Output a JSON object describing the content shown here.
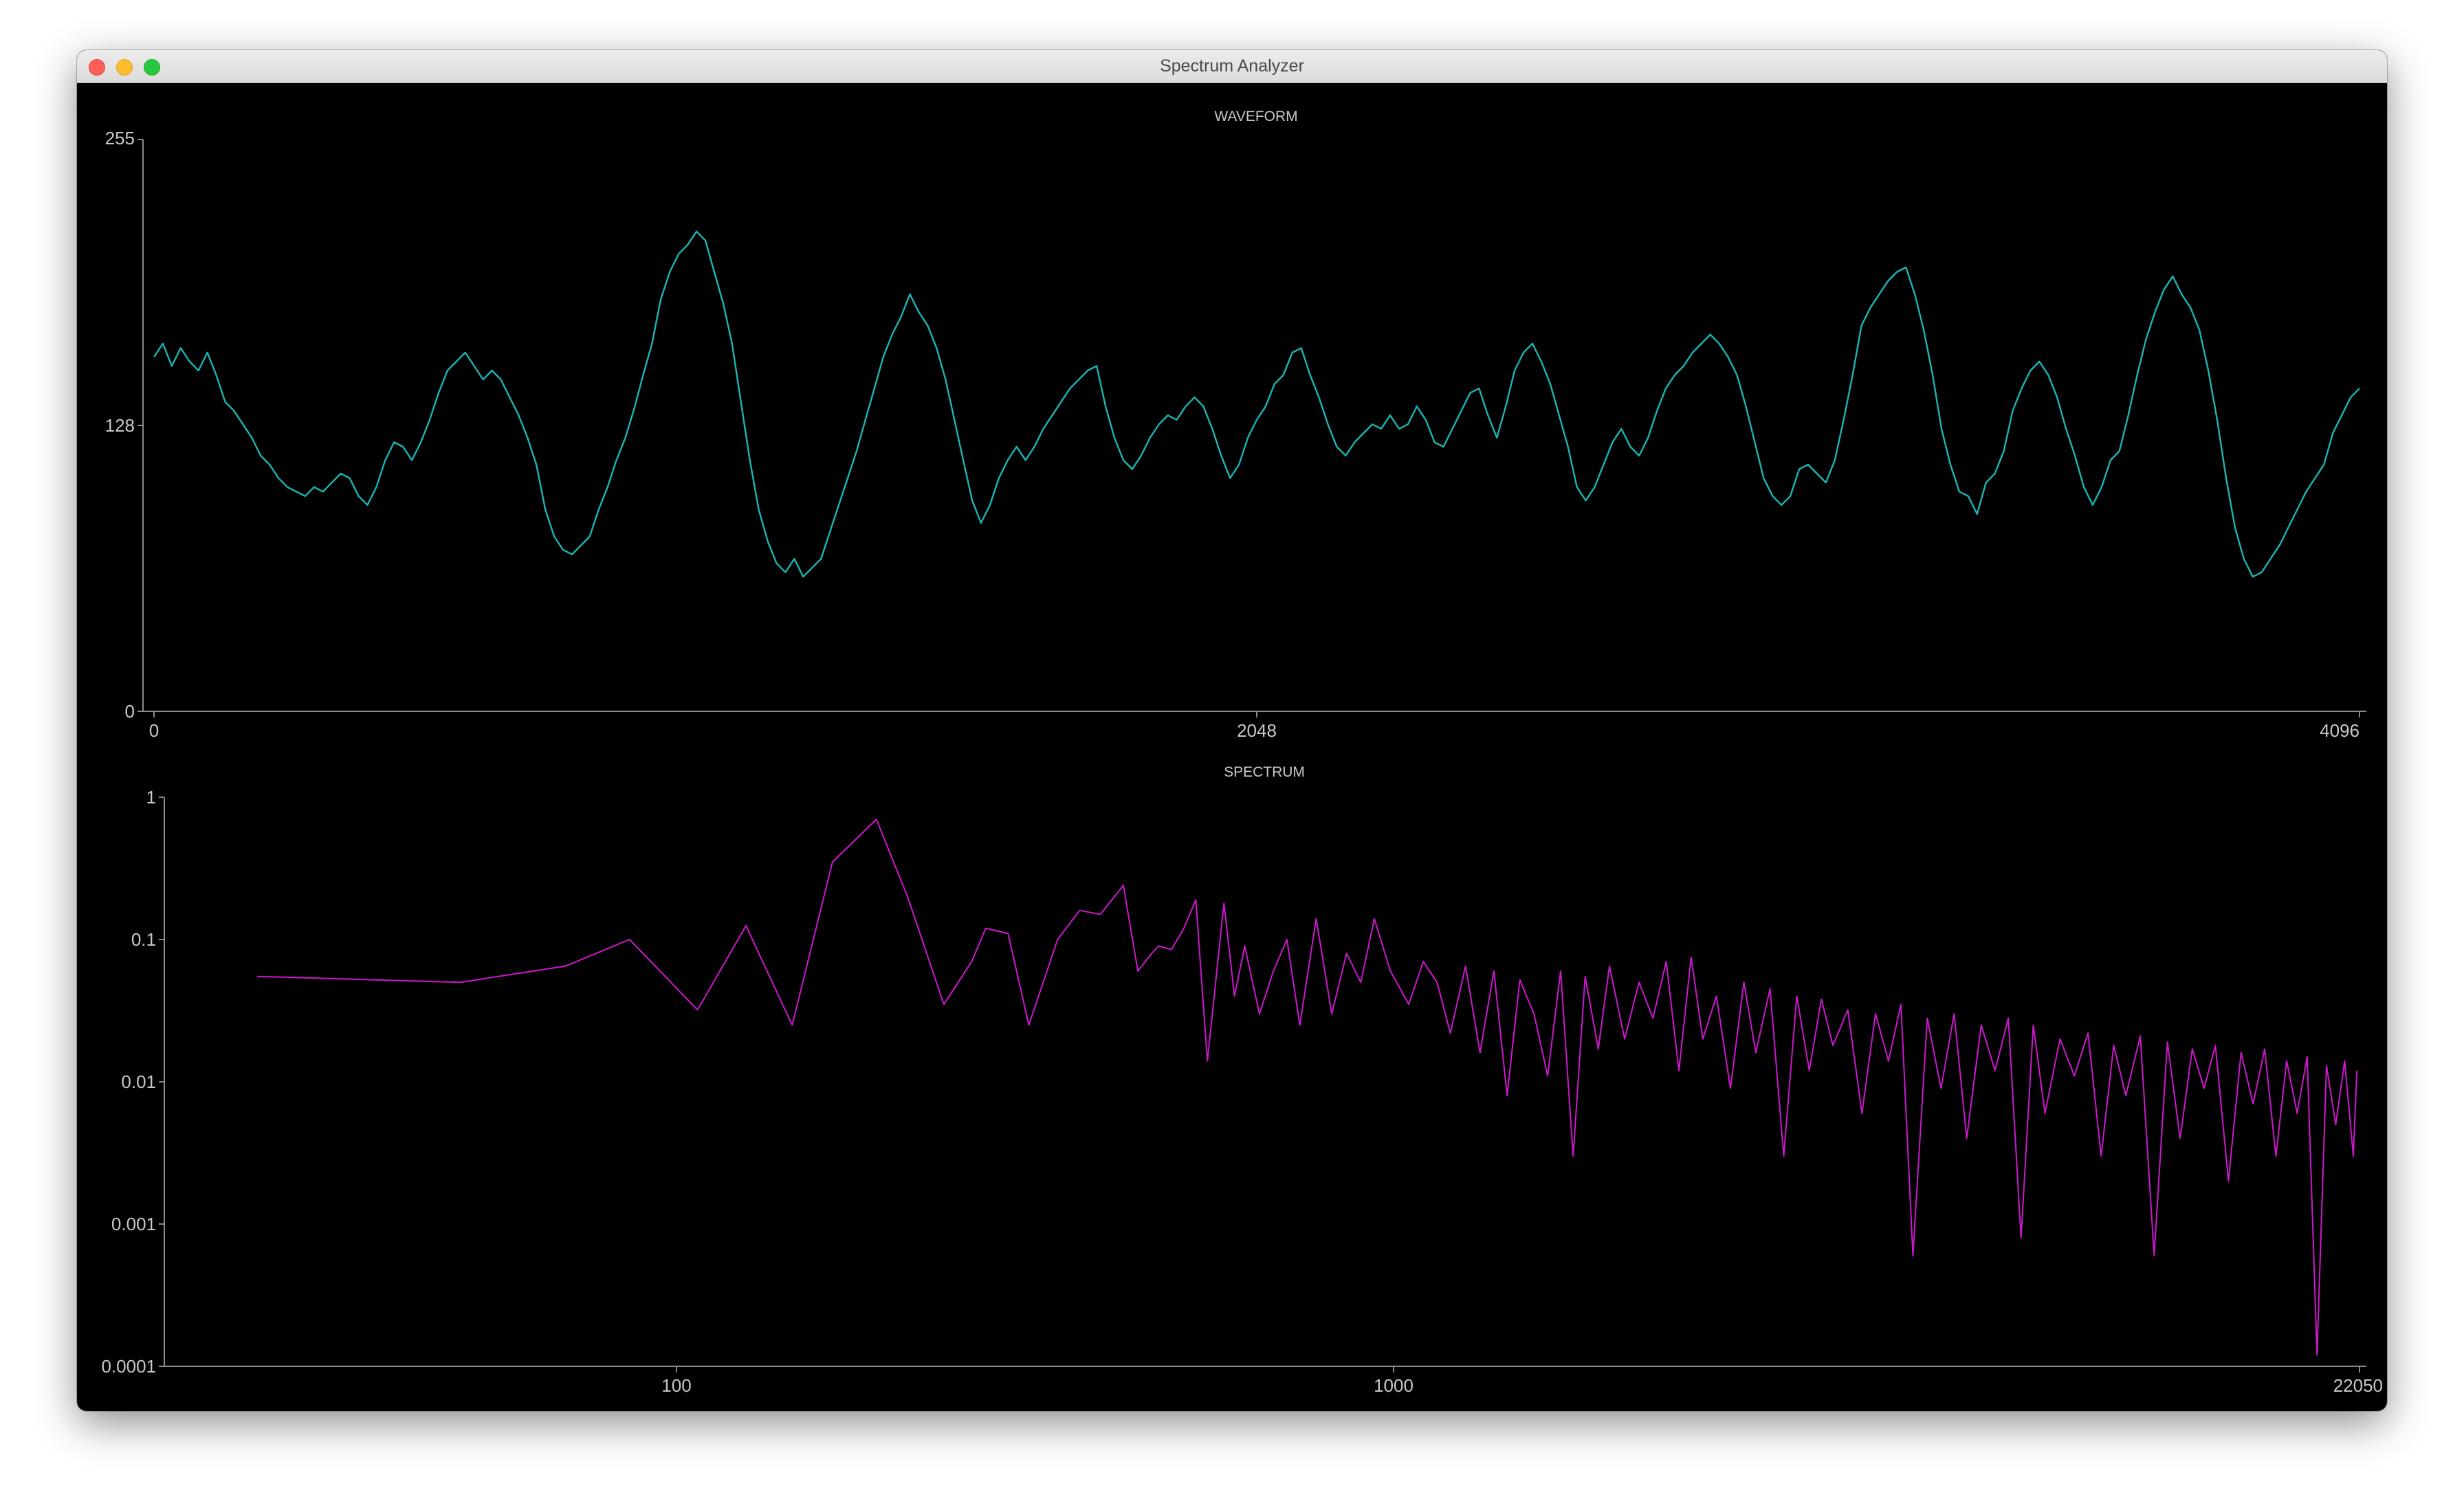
{
  "window": {
    "title": "Spectrum Analyzer"
  },
  "colors": {
    "waveform": "#1ab6b6",
    "spectrum": "#cc18cc",
    "axis": "#8a8a8a",
    "text": "#c8c8c8",
    "background": "#000000"
  },
  "chart_data": [
    {
      "type": "line",
      "title": "WAVEFORM",
      "xlim": [
        0,
        4096
      ],
      "ylim": [
        0,
        255
      ],
      "x_ticks": [
        "0",
        "2048",
        "4096"
      ],
      "y_ticks": [
        "0",
        "128",
        "255"
      ],
      "series": [
        {
          "values": [
            158,
            164,
            154,
            162,
            156,
            152,
            160,
            150,
            138,
            134,
            128,
            122,
            114,
            110,
            104,
            100,
            98,
            96,
            100,
            98,
            102,
            106,
            104,
            96,
            92,
            100,
            112,
            120,
            118,
            112,
            120,
            130,
            142,
            152,
            156,
            160,
            154,
            148,
            152,
            148,
            140,
            132,
            122,
            110,
            90,
            78,
            72,
            70,
            74,
            78,
            90,
            100,
            112,
            122,
            135,
            150,
            164,
            184,
            196,
            204,
            208,
            214,
            210,
            196,
            182,
            164,
            138,
            112,
            90,
            76,
            66,
            62,
            68,
            60,
            64,
            68,
            80,
            92,
            104,
            116,
            130,
            144,
            158,
            168,
            176,
            186,
            178,
            172,
            162,
            148,
            130,
            112,
            94,
            84,
            92,
            104,
            112,
            118,
            112,
            118,
            126,
            132,
            138,
            144,
            148,
            152,
            154,
            136,
            122,
            112,
            108,
            114,
            122,
            128,
            132,
            130,
            136,
            140,
            136,
            126,
            114,
            104,
            110,
            122,
            130,
            136,
            146,
            150,
            160,
            162,
            150,
            140,
            128,
            118,
            114,
            120,
            124,
            128,
            126,
            132,
            126,
            128,
            136,
            130,
            120,
            118,
            126,
            134,
            142,
            144,
            132,
            122,
            136,
            152,
            160,
            164,
            156,
            146,
            132,
            118,
            100,
            94,
            100,
            110,
            120,
            126,
            118,
            114,
            122,
            134,
            144,
            150,
            154,
            160,
            164,
            168,
            164,
            158,
            150,
            136,
            120,
            104,
            96,
            92,
            96,
            108,
            110,
            106,
            102,
            112,
            130,
            150,
            172,
            180,
            186,
            192,
            196,
            198,
            186,
            170,
            150,
            126,
            110,
            98,
            96,
            88,
            102,
            106,
            116,
            134,
            144,
            152,
            156,
            150,
            140,
            126,
            114,
            100,
            92,
            100,
            112,
            116,
            132,
            150,
            166,
            178,
            188,
            194,
            186,
            180,
            170,
            152,
            130,
            104,
            82,
            68,
            60,
            62,
            68,
            74,
            82,
            90,
            98,
            104,
            110,
            124,
            132,
            140,
            144
          ]
        }
      ]
    },
    {
      "type": "line",
      "title": "SPECTRUM",
      "xscale": "log",
      "yscale": "log",
      "xlim": [
        20,
        22050
      ],
      "ylim": [
        0.0001,
        1
      ],
      "x_ticks": [
        "100",
        "1000",
        "22050"
      ],
      "y_ticks": [
        "0.0001",
        "0.001",
        "0.01",
        "0.1",
        "1"
      ],
      "series": [
        {
          "x": [
            26,
            50,
            70,
            86,
            107,
            125,
            145,
            165,
            190,
            210,
            236,
            258,
            270,
            290,
            310,
            340,
            365,
            390,
            420,
            440,
            460,
            470,
            490,
            510,
            530,
            550,
            580,
            600,
            620,
            650,
            680,
            710,
            740,
            780,
            820,
            860,
            900,
            940,
            990,
            1050,
            1100,
            1150,
            1200,
            1260,
            1320,
            1380,
            1440,
            1500,
            1570,
            1640,
            1710,
            1780,
            1850,
            1930,
            2000,
            2100,
            2200,
            2300,
            2400,
            2500,
            2600,
            2700,
            2820,
            2950,
            3080,
            3200,
            3350,
            3500,
            3650,
            3800,
            3950,
            4100,
            4300,
            4500,
            4700,
            4900,
            5100,
            5300,
            5550,
            5800,
            6050,
            6300,
            6600,
            6900,
            7200,
            7500,
            7800,
            8100,
            8500,
            8900,
            9300,
            9700,
            10100,
            10500,
            11000,
            11500,
            12000,
            12500,
            13000,
            13500,
            14000,
            14600,
            15200,
            15800,
            16400,
            17000,
            17600,
            18200,
            18800,
            19400,
            20000,
            20600,
            21200,
            21800,
            22050
          ],
          "y": [
            0.055,
            0.05,
            0.065,
            0.1,
            0.032,
            0.125,
            0.025,
            0.35,
            0.7,
            0.2,
            0.035,
            0.07,
            0.12,
            0.11,
            0.025,
            0.1,
            0.16,
            0.15,
            0.24,
            0.06,
            0.08,
            0.09,
            0.085,
            0.12,
            0.19,
            0.014,
            0.18,
            0.04,
            0.09,
            0.03,
            0.06,
            0.1,
            0.025,
            0.14,
            0.03,
            0.08,
            0.05,
            0.14,
            0.06,
            0.035,
            0.07,
            0.05,
            0.022,
            0.065,
            0.016,
            0.06,
            0.008,
            0.052,
            0.03,
            0.011,
            0.06,
            0.003,
            0.055,
            0.017,
            0.065,
            0.02,
            0.05,
            0.028,
            0.07,
            0.012,
            0.075,
            0.02,
            0.04,
            0.009,
            0.05,
            0.016,
            0.045,
            0.003,
            0.04,
            0.012,
            0.038,
            0.018,
            0.032,
            0.006,
            0.03,
            0.014,
            0.035,
            0.0006,
            0.028,
            0.009,
            0.03,
            0.004,
            0.025,
            0.012,
            0.028,
            0.0008,
            0.025,
            0.006,
            0.02,
            0.011,
            0.022,
            0.003,
            0.018,
            0.008,
            0.021,
            0.0006,
            0.019,
            0.004,
            0.017,
            0.009,
            0.018,
            0.002,
            0.016,
            0.007,
            0.017,
            0.003,
            0.014,
            0.006,
            0.015,
            0.00012,
            0.013,
            0.005,
            0.014,
            0.003,
            0.012
          ]
        }
      ]
    }
  ]
}
